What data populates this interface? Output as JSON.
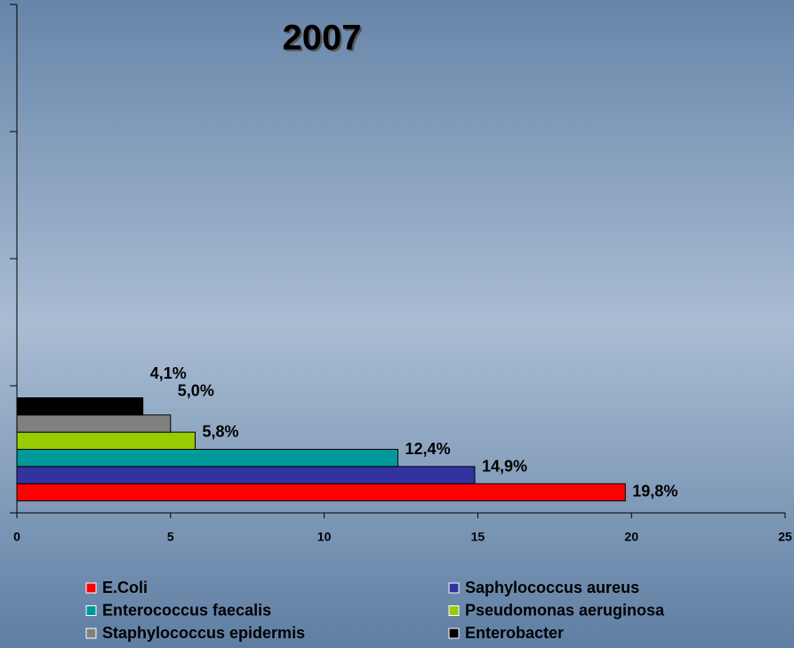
{
  "chart_data": {
    "type": "barh",
    "title": "2007",
    "categories": [
      null,
      null,
      null,
      null
    ],
    "series": [
      {
        "name": "E.Coli",
        "color": "#ff0000",
        "values": [
          19.8,
          null,
          null,
          null
        ],
        "value_labels": [
          "19,8%",
          null,
          null,
          null
        ]
      },
      {
        "name": "Saphylococcus aureus",
        "color": "#33339f",
        "values": [
          14.9,
          null,
          null,
          null
        ],
        "value_labels": [
          "14,9%",
          null,
          null,
          null
        ]
      },
      {
        "name": "Enterococcus faecalis",
        "color": "#009999",
        "values": [
          12.4,
          null,
          null,
          null
        ],
        "value_labels": [
          "12,4%",
          null,
          null,
          null
        ]
      },
      {
        "name": "Pseudomonas aeruginosa",
        "color": "#99cc00",
        "values": [
          5.8,
          null,
          null,
          null
        ],
        "value_labels": [
          "5,8%",
          null,
          null,
          null
        ]
      },
      {
        "name": "Staphylococcus epidermis",
        "color": "#808080",
        "values": [
          5.0,
          null,
          null,
          null
        ],
        "value_labels": [
          "5,0%",
          null,
          null,
          null
        ]
      },
      {
        "name": "Enterobacter",
        "color": "#000000",
        "values": [
          4.1,
          null,
          null,
          null
        ],
        "value_labels": [
          "4,1%",
          null,
          null,
          null
        ]
      }
    ],
    "xlim": [
      0,
      25
    ],
    "xticks": [
      0,
      5,
      10,
      15,
      20,
      25
    ],
    "legend": "bottom"
  }
}
